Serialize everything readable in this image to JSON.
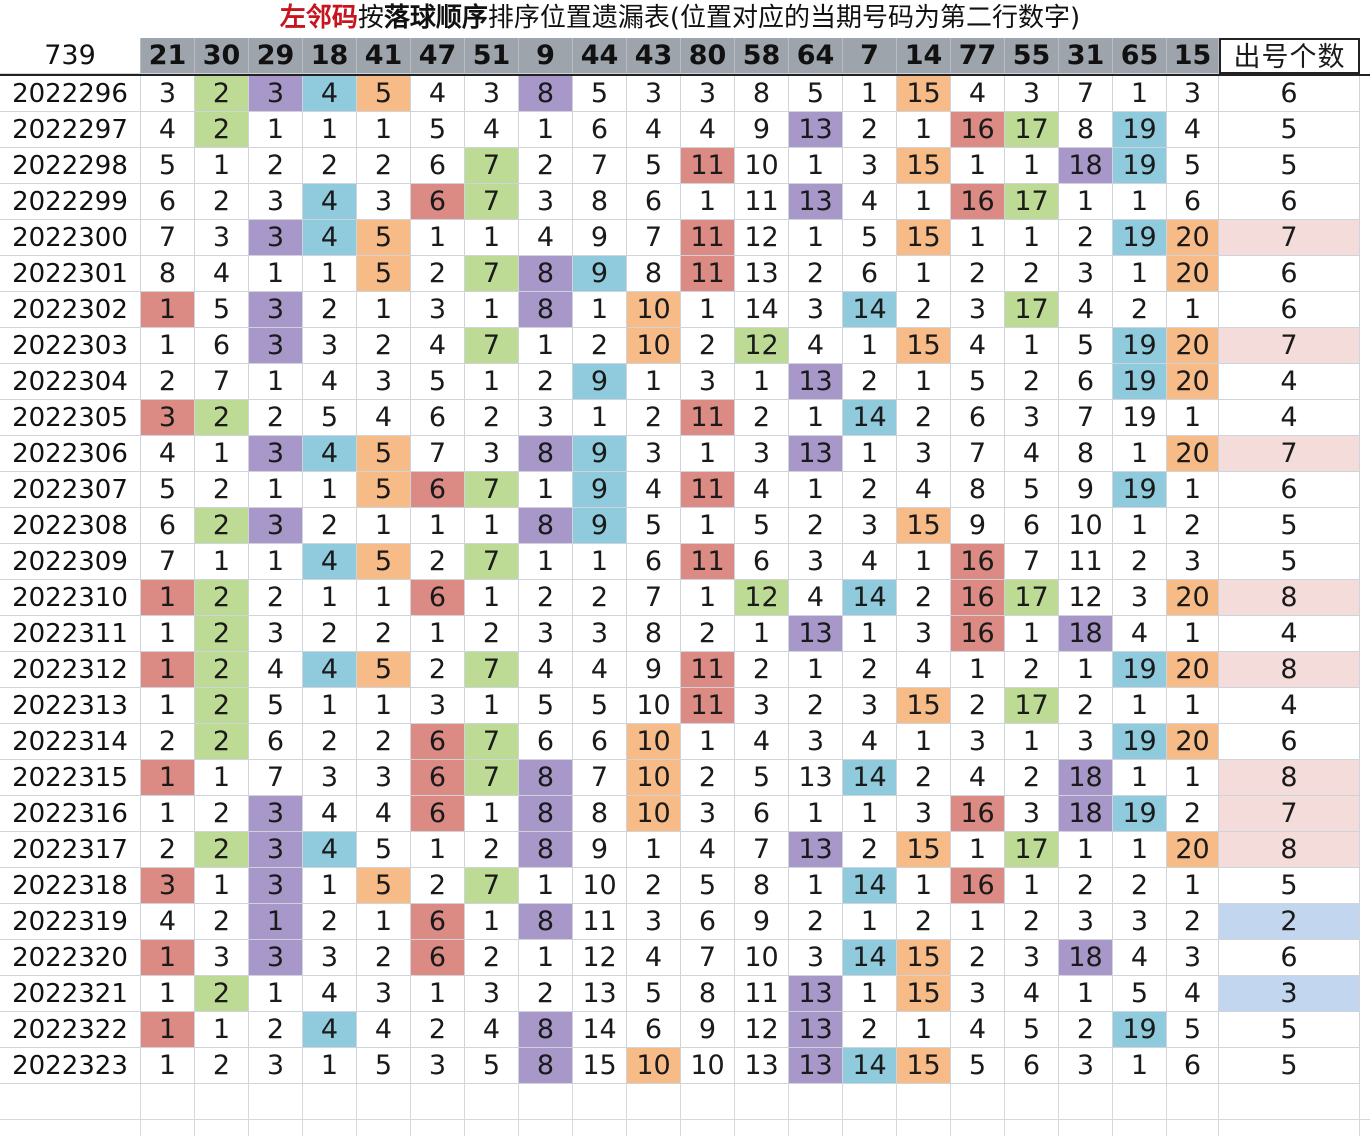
{
  "title": {
    "part1": "左邻码",
    "part2": "按",
    "part3": "落球顺序",
    "part4": "排序位置遗漏表(位置对应的当期号码为第二行数字)"
  },
  "header": {
    "issue": "739",
    "numbers": [
      "21",
      "30",
      "29",
      "18",
      "41",
      "47",
      "51",
      "9",
      "44",
      "43",
      "80",
      "58",
      "64",
      "7",
      "14",
      "77",
      "55",
      "31",
      "65",
      "15"
    ],
    "count_label": "出号个数"
  },
  "colors": {
    "red": "#dc8a84",
    "green": "#bedb96",
    "purple": "#a898c9",
    "blue": "#8fcbdc",
    "orange": "#f7bb88",
    "pink": "#f4dcda",
    "light_blue": "#c3d6ef"
  },
  "rows": [
    {
      "issue": "2022296",
      "vals": [
        3,
        2,
        3,
        4,
        5,
        4,
        3,
        8,
        5,
        3,
        3,
        8,
        5,
        1,
        15,
        4,
        3,
        7,
        1,
        3
      ],
      "count": "6"
    },
    {
      "issue": "2022297",
      "vals": [
        4,
        2,
        1,
        1,
        1,
        5,
        4,
        1,
        6,
        4,
        4,
        9,
        13,
        2,
        1,
        16,
        17,
        8,
        19,
        4
      ],
      "count": "5"
    },
    {
      "issue": "2022298",
      "vals": [
        5,
        1,
        2,
        2,
        2,
        6,
        7,
        2,
        7,
        5,
        11,
        10,
        1,
        3,
        15,
        1,
        1,
        18,
        19,
        5
      ],
      "count": "5"
    },
    {
      "issue": "2022299",
      "vals": [
        6,
        2,
        3,
        4,
        3,
        6,
        7,
        3,
        8,
        6,
        1,
        11,
        13,
        4,
        1,
        16,
        17,
        1,
        1,
        6
      ],
      "count": "6"
    },
    {
      "issue": "2022300",
      "vals": [
        7,
        3,
        3,
        4,
        5,
        1,
        1,
        4,
        9,
        7,
        11,
        12,
        1,
        5,
        15,
        1,
        1,
        2,
        19,
        20
      ],
      "count": "7"
    },
    {
      "issue": "2022301",
      "vals": [
        8,
        4,
        1,
        1,
        5,
        2,
        7,
        8,
        9,
        8,
        11,
        13,
        2,
        6,
        1,
        2,
        2,
        3,
        1,
        20
      ],
      "count": "6"
    },
    {
      "issue": "2022302",
      "vals": [
        1,
        5,
        3,
        2,
        1,
        3,
        1,
        8,
        1,
        10,
        1,
        14,
        3,
        14,
        2,
        3,
        17,
        4,
        2,
        1
      ],
      "count": "6"
    },
    {
      "issue": "2022303",
      "vals": [
        1,
        6,
        3,
        3,
        2,
        4,
        7,
        1,
        2,
        10,
        2,
        12,
        4,
        1,
        15,
        4,
        1,
        5,
        19,
        20
      ],
      "count": "7"
    },
    {
      "issue": "2022304",
      "vals": [
        2,
        7,
        1,
        4,
        3,
        5,
        1,
        2,
        9,
        1,
        3,
        1,
        13,
        2,
        1,
        5,
        2,
        6,
        19,
        20
      ],
      "count": "4"
    },
    {
      "issue": "2022305",
      "vals": [
        3,
        2,
        2,
        5,
        4,
        6,
        2,
        3,
        1,
        2,
        11,
        2,
        1,
        14,
        2,
        6,
        3,
        7,
        19,
        1
      ],
      "count": "4"
    },
    {
      "issue": "2022306",
      "vals": [
        4,
        1,
        3,
        4,
        5,
        7,
        3,
        8,
        9,
        3,
        1,
        3,
        13,
        1,
        3,
        7,
        4,
        8,
        1,
        20
      ],
      "count": "7"
    },
    {
      "issue": "2022307",
      "vals": [
        5,
        2,
        1,
        1,
        5,
        6,
        7,
        1,
        9,
        4,
        11,
        4,
        1,
        2,
        4,
        8,
        5,
        9,
        19,
        1
      ],
      "count": "6"
    },
    {
      "issue": "2022308",
      "vals": [
        6,
        2,
        3,
        2,
        1,
        1,
        1,
        8,
        9,
        5,
        1,
        5,
        2,
        3,
        15,
        9,
        6,
        10,
        1,
        2
      ],
      "count": "5"
    },
    {
      "issue": "2022309",
      "vals": [
        7,
        1,
        1,
        4,
        5,
        2,
        7,
        1,
        1,
        6,
        11,
        6,
        3,
        4,
        1,
        16,
        7,
        11,
        2,
        3
      ],
      "count": "5"
    },
    {
      "issue": "2022310",
      "vals": [
        1,
        2,
        2,
        1,
        1,
        6,
        1,
        2,
        2,
        7,
        1,
        12,
        4,
        14,
        2,
        16,
        17,
        12,
        3,
        20
      ],
      "count": "8"
    },
    {
      "issue": "2022311",
      "vals": [
        1,
        2,
        3,
        2,
        2,
        1,
        2,
        3,
        3,
        8,
        2,
        1,
        13,
        1,
        3,
        16,
        1,
        18,
        4,
        1
      ],
      "count": "4"
    },
    {
      "issue": "2022312",
      "vals": [
        1,
        2,
        4,
        4,
        5,
        2,
        7,
        4,
        4,
        9,
        11,
        2,
        1,
        2,
        4,
        1,
        2,
        1,
        19,
        20
      ],
      "count": "8"
    },
    {
      "issue": "2022313",
      "vals": [
        1,
        2,
        5,
        1,
        1,
        3,
        1,
        5,
        5,
        10,
        11,
        3,
        2,
        3,
        15,
        2,
        17,
        2,
        1,
        1
      ],
      "count": "4"
    },
    {
      "issue": "2022314",
      "vals": [
        2,
        2,
        6,
        2,
        2,
        6,
        7,
        6,
        6,
        10,
        1,
        4,
        3,
        4,
        1,
        3,
        1,
        3,
        19,
        20
      ],
      "count": "6"
    },
    {
      "issue": "2022315",
      "vals": [
        1,
        1,
        7,
        3,
        3,
        6,
        7,
        8,
        7,
        10,
        2,
        5,
        13,
        14,
        2,
        4,
        2,
        18,
        1,
        1
      ],
      "count": "8"
    },
    {
      "issue": "2022316",
      "vals": [
        1,
        2,
        3,
        4,
        4,
        6,
        1,
        8,
        8,
        10,
        3,
        6,
        1,
        1,
        3,
        16,
        3,
        18,
        19,
        2
      ],
      "count": "7"
    },
    {
      "issue": "2022317",
      "vals": [
        2,
        2,
        3,
        4,
        5,
        1,
        2,
        8,
        9,
        1,
        4,
        7,
        13,
        2,
        15,
        1,
        17,
        1,
        1,
        20
      ],
      "count": "8"
    },
    {
      "issue": "2022318",
      "vals": [
        3,
        1,
        3,
        1,
        5,
        2,
        7,
        1,
        10,
        2,
        5,
        8,
        1,
        14,
        1,
        16,
        1,
        2,
        2,
        1
      ],
      "count": "5"
    },
    {
      "issue": "2022319",
      "vals": [
        4,
        2,
        1,
        2,
        1,
        6,
        1,
        8,
        11,
        3,
        6,
        9,
        2,
        1,
        2,
        1,
        2,
        3,
        3,
        2
      ],
      "count": "2"
    },
    {
      "issue": "2022320",
      "vals": [
        1,
        3,
        3,
        3,
        2,
        6,
        2,
        1,
        12,
        4,
        7,
        10,
        3,
        14,
        15,
        2,
        3,
        18,
        4,
        3
      ],
      "count": "6"
    },
    {
      "issue": "2022321",
      "vals": [
        1,
        2,
        1,
        4,
        3,
        1,
        3,
        2,
        13,
        5,
        8,
        11,
        13,
        1,
        15,
        3,
        4,
        1,
        5,
        4
      ],
      "count": "3"
    },
    {
      "issue": "2022322",
      "vals": [
        1,
        1,
        2,
        4,
        4,
        2,
        4,
        8,
        14,
        6,
        9,
        12,
        13,
        2,
        1,
        4,
        5,
        2,
        19,
        5
      ],
      "count": "5"
    },
    {
      "issue": "2022323",
      "vals": [
        1,
        2,
        3,
        1,
        5,
        3,
        5,
        8,
        15,
        10,
        10,
        13,
        13,
        14,
        15,
        5,
        6,
        3,
        1,
        6
      ],
      "count": "5"
    }
  ]
}
